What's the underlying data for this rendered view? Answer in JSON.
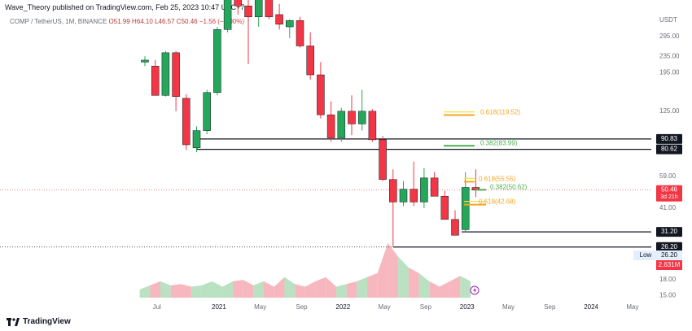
{
  "header": {
    "published_by": "Wave_Theory published on TradingView.com, Feb 25, 2023 10:47 UTC+7"
  },
  "symbol_line": {
    "name": "COMP / TetherUS, 1M, BINANCE",
    "o_label": "O",
    "o_value": "51.99",
    "h_label": "H",
    "h_value": "64.10",
    "l_label": "L",
    "l_value": "46.57",
    "c_label": "C",
    "c_value": "50.46",
    "change": "−1.56 (−3.00%)"
  },
  "brand": {
    "name": "TradingView"
  },
  "colors": {
    "up": "#26a65b",
    "down": "#f23645",
    "vol_up": "#b5dfbf",
    "vol_down": "#f7b3ba",
    "fib_gold": "#f5a623",
    "fib_green": "#4caf50",
    "fib_yellow": "#f5e14b"
  },
  "chart_data": {
    "type": "candlestick",
    "title": "",
    "xlabel": "",
    "ylabel": "",
    "y_scale": "log",
    "currency": "USDT",
    "grid": false,
    "y_ticks": [
      "295.00",
      "235.00",
      "195.00",
      "125.00",
      "59.00",
      "41.00",
      "18.00",
      "15.00"
    ],
    "x_ticks": [
      "Jul",
      "2021",
      "May",
      "Sep",
      "2022",
      "May",
      "Sep",
      "2023",
      "May",
      "Sep",
      "2024",
      "May"
    ],
    "candles": [
      {
        "o": 220,
        "h": 235,
        "l": 210,
        "c": 225
      },
      {
        "o": 210,
        "h": 225,
        "l": 150,
        "c": 150
      },
      {
        "o": 150,
        "h": 250,
        "l": 148,
        "c": 245
      },
      {
        "o": 245,
        "h": 250,
        "l": 125,
        "c": 148
      },
      {
        "o": 145,
        "h": 152,
        "l": 80,
        "c": 85
      },
      {
        "o": 82,
        "h": 105,
        "l": 78,
        "c": 100
      },
      {
        "o": 100,
        "h": 160,
        "l": 96,
        "c": 155
      },
      {
        "o": 155,
        "h": 330,
        "l": 150,
        "c": 320
      },
      {
        "o": 320,
        "h": 500,
        "l": 310,
        "c": 480
      },
      {
        "o": 480,
        "h": 520,
        "l": 380,
        "c": 420
      },
      {
        "o": 420,
        "h": 480,
        "l": 215,
        "c": 370
      },
      {
        "o": 370,
        "h": 520,
        "l": 330,
        "c": 480
      },
      {
        "o": 480,
        "h": 510,
        "l": 360,
        "c": 370
      },
      {
        "o": 380,
        "h": 430,
        "l": 320,
        "c": 340
      },
      {
        "o": 330,
        "h": 360,
        "l": 290,
        "c": 355
      },
      {
        "o": 355,
        "h": 370,
        "l": 260,
        "c": 265
      },
      {
        "o": 265,
        "h": 310,
        "l": 180,
        "c": 190
      },
      {
        "o": 190,
        "h": 220,
        "l": 115,
        "c": 120
      },
      {
        "o": 120,
        "h": 140,
        "l": 88,
        "c": 92
      },
      {
        "o": 92,
        "h": 130,
        "l": 88,
        "c": 125
      },
      {
        "o": 125,
        "h": 150,
        "l": 95,
        "c": 108
      },
      {
        "o": 108,
        "h": 160,
        "l": 100,
        "c": 125
      },
      {
        "o": 125,
        "h": 128,
        "l": 88,
        "c": 90
      },
      {
        "o": 90,
        "h": 94,
        "l": 56,
        "c": 57
      },
      {
        "o": 57,
        "h": 64,
        "l": 26.2,
        "c": 44
      },
      {
        "o": 44,
        "h": 56,
        "l": 42,
        "c": 51
      },
      {
        "o": 51,
        "h": 70,
        "l": 42,
        "c": 44
      },
      {
        "o": 44,
        "h": 65,
        "l": 41,
        "c": 58
      },
      {
        "o": 58,
        "h": 62,
        "l": 48,
        "c": 47
      },
      {
        "o": 47,
        "h": 50,
        "l": 36,
        "c": 36
      },
      {
        "o": 36,
        "h": 40,
        "l": 30,
        "c": 30
      },
      {
        "o": 32,
        "h": 62,
        "l": 31,
        "c": 52
      },
      {
        "o": 51.99,
        "h": 64.1,
        "l": 46.57,
        "c": 50.46
      }
    ],
    "volume": [
      6,
      9,
      12,
      9,
      10,
      8,
      9,
      12,
      8,
      12,
      13,
      9,
      12,
      8,
      15,
      10,
      8,
      12,
      15,
      8,
      10,
      12,
      15,
      18,
      40,
      30,
      22,
      18,
      12,
      8,
      12,
      16,
      12
    ],
    "horizontal_levels": [
      {
        "value": 90.83,
        "label": "90.83"
      },
      {
        "value": 80.62,
        "label": "80.62"
      },
      {
        "value": 31.2,
        "label": "31.20"
      },
      {
        "value": 26.2,
        "label": "26.20"
      }
    ],
    "fib_levels": [
      {
        "value": 119.52,
        "text": "0.618(119.52)",
        "color": "fib_gold"
      },
      {
        "value": 83.99,
        "text": "0.382(83.99)",
        "color": "fib_green"
      },
      {
        "value": 55.55,
        "text": "0.618(55.55)",
        "color": "fib_gold"
      },
      {
        "value": 50.62,
        "text": "0.382(50.62)",
        "color": "fib_green"
      },
      {
        "value": 42.68,
        "text": "0.618(42.68)",
        "color": "fib_gold"
      }
    ],
    "current_price": {
      "value": 50.46,
      "label": "50.46",
      "countdown": "3d 21h"
    },
    "low_marker": {
      "label": "Low",
      "value": "26.20"
    },
    "volume_label": "2.631M"
  }
}
